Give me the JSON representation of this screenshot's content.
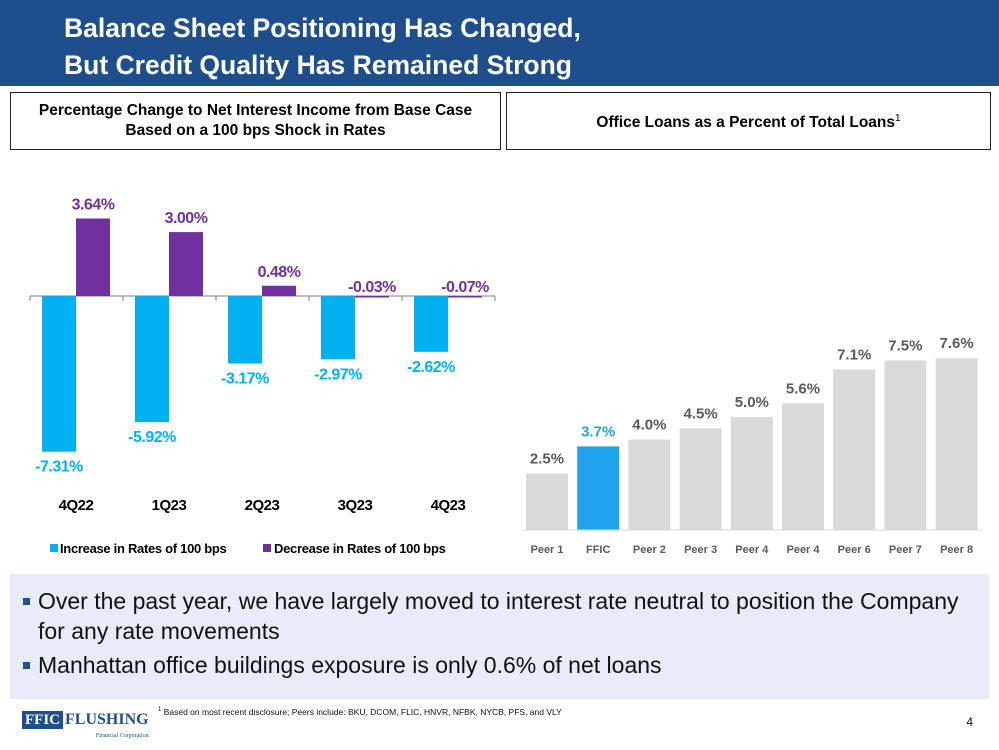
{
  "header": {
    "title_line1": "Balance Sheet Positioning Has Changed,",
    "title_line2": "But Credit Quality Has Remained Strong"
  },
  "left_panel": {
    "title_line1": "Percentage Change to Net Interest Income from Base Case",
    "title_line2": "Based on a 100 bps Shock in Rates"
  },
  "right_panel": {
    "title": "Office Loans as a Percent of Total Loans",
    "title_superscript": "1"
  },
  "colors": {
    "navy": "#1f4e8c",
    "increase": "#00b0f0",
    "decrease": "#7030a0",
    "peer": "#d9d9d9",
    "ffic": "#1fa3ea",
    "bullet_bg": "#e8ecf8"
  },
  "chart_data": [
    {
      "type": "bar",
      "title": "Percentage Change to Net Interest Income from Base Case Based on a 100 bps Shock in Rates",
      "categories": [
        "4Q22",
        "1Q23",
        "2Q23",
        "3Q23",
        "4Q23"
      ],
      "series": [
        {
          "name": "Increase in Rates of 100 bps",
          "values": [
            -7.31,
            -5.92,
            -3.17,
            -2.97,
            -2.62
          ],
          "labels": [
            "-7.31%",
            "-5.92%",
            "-3.17%",
            "-2.97%",
            "-2.62%"
          ]
        },
        {
          "name": "Decrease in Rates of 100 bps",
          "values": [
            3.64,
            3.0,
            0.48,
            -0.03,
            -0.07
          ],
          "labels": [
            "3.64%",
            "3.00%",
            "0.48%",
            "-0.03%",
            "-0.07%"
          ]
        }
      ],
      "ylim": [
        -8,
        4
      ],
      "legend": "bottom"
    },
    {
      "type": "bar",
      "title": "Office Loans as a Percent of Total Loans",
      "categories": [
        "Peer 1",
        "FFIC",
        "Peer 2",
        "Peer 3",
        "Peer 4",
        "Peer 4",
        "Peer 6",
        "Peer 7",
        "Peer 8"
      ],
      "values": [
        2.5,
        3.7,
        4.0,
        4.5,
        5.0,
        5.6,
        7.1,
        7.5,
        7.6
      ],
      "labels": [
        "2.5%",
        "3.7%",
        "4.0%",
        "4.5%",
        "5.0%",
        "5.6%",
        "7.1%",
        "7.5%",
        "7.6%"
      ],
      "highlight": "FFIC",
      "ylim": [
        0,
        7.6
      ]
    }
  ],
  "bullets": [
    "Over the past year, we have largely moved to interest rate neutral to position the Company for any rate movements",
    "Manhattan office buildings exposure is only 0.6% of net loans"
  ],
  "footer": {
    "logo_ffic": "FFIC",
    "logo_flushing": "FLUSHING",
    "logo_sub": "Financial Corporation",
    "footnote_sup": "1",
    "footnote": "Based on most recent disclosure; Peers include: BKU, DCOM, FLIC, HNVR, NFBK, NYCB, PFS, and VLY",
    "page_number": "4"
  }
}
